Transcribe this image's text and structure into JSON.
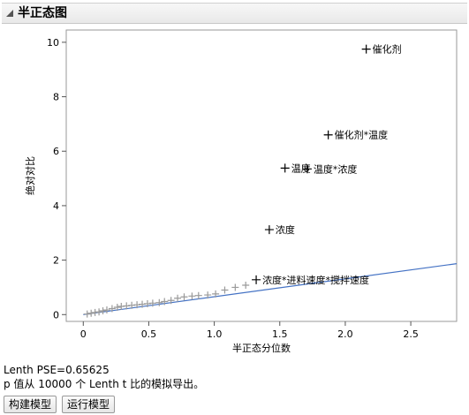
{
  "panel": {
    "title": "半正态图"
  },
  "chart_data": {
    "type": "scatter",
    "xlabel": "半正态分位数",
    "ylabel": "绝对对比",
    "xlim": [
      -0.13,
      2.85
    ],
    "ylim": [
      -0.25,
      10.45
    ],
    "xticks": [
      0,
      0.5,
      1.0,
      1.5,
      2.0,
      2.5
    ],
    "xtick_labels": [
      "0",
      "0.5",
      "1.0",
      "1.5",
      "2.0",
      "2.5"
    ],
    "yticks": [
      0,
      2,
      4,
      6,
      8,
      10
    ],
    "ytick_labels": [
      "0",
      "2",
      "4",
      "6",
      "8",
      "10"
    ],
    "grid": false,
    "labeled_points": [
      {
        "x": 2.16,
        "y": 9.75,
        "label": "催化剂"
      },
      {
        "x": 1.87,
        "y": 6.6,
        "label": "催化剂*温度"
      },
      {
        "x": 1.54,
        "y": 5.38,
        "label": "温度"
      },
      {
        "x": 1.71,
        "y": 5.35,
        "label": "温度*浓度"
      },
      {
        "x": 1.42,
        "y": 3.12,
        "label": "浓度"
      },
      {
        "x": 1.32,
        "y": 1.28,
        "label": "浓度*进料速度*搅拌速度"
      }
    ],
    "unlabeled_points": {
      "x": [
        0.03,
        0.06,
        0.09,
        0.12,
        0.15,
        0.18,
        0.22,
        0.26,
        0.29,
        0.33,
        0.37,
        0.41,
        0.45,
        0.49,
        0.53,
        0.58,
        0.62,
        0.67,
        0.72,
        0.77,
        0.83,
        0.88,
        0.95,
        1.01,
        1.08,
        1.16,
        1.24
      ],
      "y": [
        0.02,
        0.05,
        0.08,
        0.1,
        0.14,
        0.17,
        0.22,
        0.27,
        0.3,
        0.32,
        0.34,
        0.36,
        0.38,
        0.4,
        0.42,
        0.44,
        0.48,
        0.52,
        0.6,
        0.65,
        0.68,
        0.7,
        0.72,
        0.76,
        0.9,
        1.0,
        1.08
      ]
    },
    "reference_line": {
      "slope": 0.65625,
      "intercept": 0,
      "color": "#4472c4"
    }
  },
  "info": {
    "lenth": "Lenth PSE=0.65625",
    "note": "p 值从 10000 个 Lenth t 比的模拟导出。"
  },
  "buttons": {
    "build_model": "构建模型",
    "run_model": "运行模型"
  }
}
